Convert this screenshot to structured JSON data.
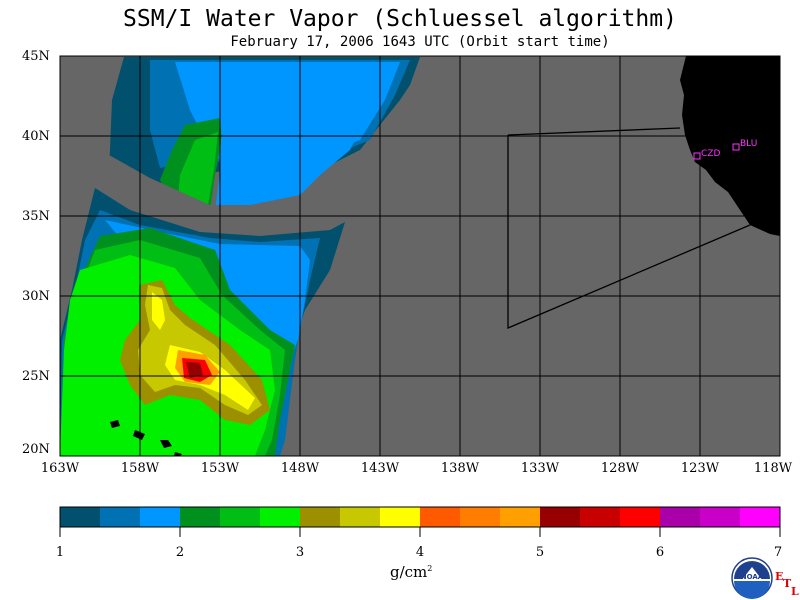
{
  "title": "SSM/I Water Vapor (Schluessel algorithm)",
  "subtitle": "February 17, 2006  1643 UTC  (Orbit start time)",
  "map": {
    "lat_labels": [
      "45N",
      "40N",
      "35N",
      "30N",
      "25N",
      "20N"
    ],
    "lon_labels": [
      "163W",
      "158W",
      "153W",
      "148W",
      "143W",
      "138W",
      "133W",
      "128W",
      "123W",
      "118W"
    ],
    "stations": [
      {
        "name": "CZD"
      },
      {
        "name": "BLU"
      }
    ],
    "colors": {
      "no_data": "#666666",
      "land": "#000000",
      "grid": "#000000",
      "station": "#ff33ff"
    }
  },
  "colorbar": {
    "ticks": [
      "1",
      "2",
      "3",
      "4",
      "5",
      "6",
      "7"
    ],
    "units": "g/cm",
    "units_sup": "2",
    "colors": [
      "#00506e",
      "#0072b4",
      "#0096ff",
      "#00901e",
      "#00be14",
      "#00f000",
      "#9c9000",
      "#c8c800",
      "#ffff00",
      "#ff5a00",
      "#ff7d00",
      "#ffa000",
      "#960000",
      "#c80000",
      "#ff0000",
      "#aa00aa",
      "#c800c8",
      "#ff00ff"
    ]
  },
  "logo": {
    "name": "NOAA",
    "side_letters": [
      "E",
      "T",
      "L"
    ]
  }
}
